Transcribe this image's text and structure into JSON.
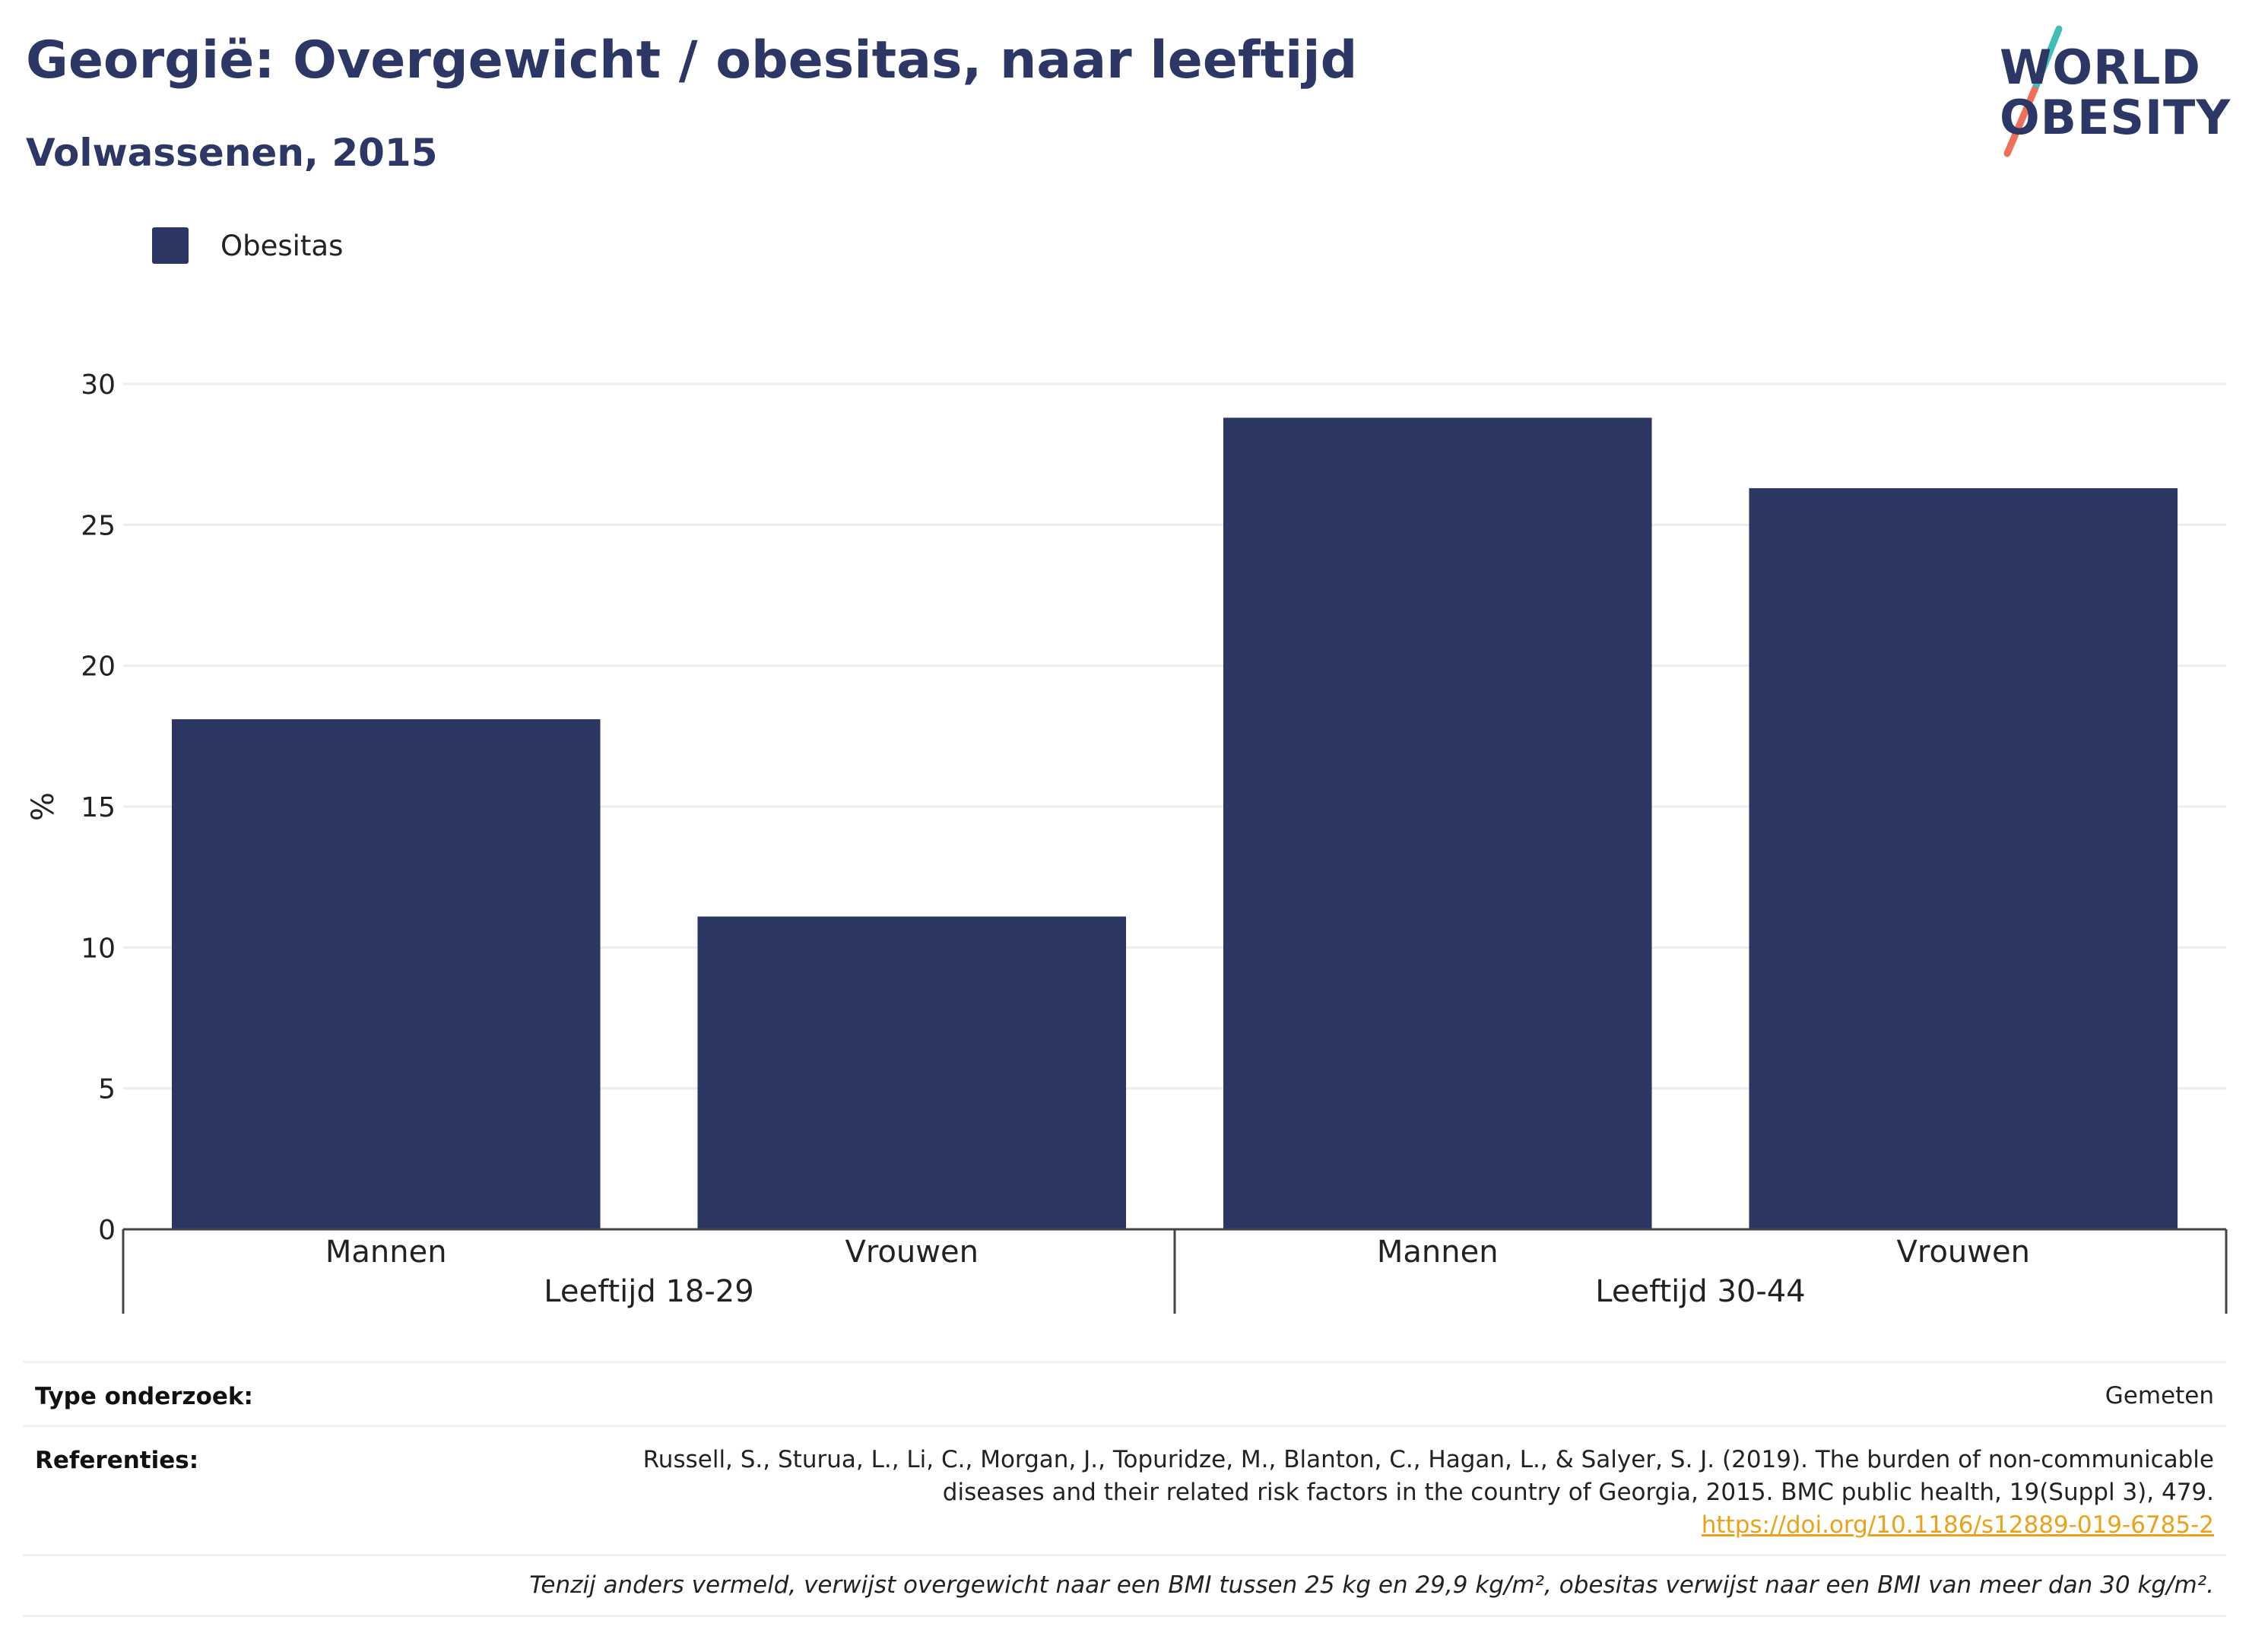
{
  "header": {
    "title": "Georgië: Overgewicht / obesitas, naar leeftijd",
    "subtitle": "Volwassenen, 2015"
  },
  "logo": {
    "line1": "WORLD",
    "line2": "OBESITY",
    "accent_colors": [
      "#3fbfb7",
      "#ef6f5a"
    ]
  },
  "legend": {
    "items": [
      {
        "label": "Obesitas",
        "color": "#2b3663"
      }
    ]
  },
  "chart_data": {
    "type": "bar",
    "ylabel": "%",
    "ylim": [
      0,
      30
    ],
    "yticks": [
      0,
      5,
      10,
      15,
      20,
      25,
      30
    ],
    "grid": true,
    "legend_position": "top-left",
    "groups": [
      {
        "label": "Leeftijd 18-29",
        "categories": [
          "Mannen",
          "Vrouwen"
        ]
      },
      {
        "label": "Leeftijd 30-44",
        "categories": [
          "Mannen",
          "Vrouwen"
        ]
      }
    ],
    "series": [
      {
        "name": "Obesitas",
        "color": "#2b3663",
        "values": [
          18.1,
          11.1,
          28.8,
          26.3
        ]
      }
    ]
  },
  "meta": {
    "study_type_label": "Type onderzoek:",
    "study_type_value": "Gemeten",
    "references_label": "Referenties:",
    "references_line1": "Russell, S., Sturua, L., Li, C., Morgan, J., Topuridze, M., Blanton, C., Hagan, L., & Salyer, S. J. (2019). The burden of non-communicable",
    "references_line2": "diseases and their related risk factors in the country of Georgia, 2015. BMC public health, 19(Suppl 3), 479.",
    "references_link": "https://doi.org/10.1186/s12889-019-6785-2",
    "footnote": "Tenzij anders vermeld, verwijst overgewicht naar een BMI tussen 25 kg en 29,9 kg/m², obesitas verwijst naar een BMI van meer dan 30 kg/m²."
  }
}
